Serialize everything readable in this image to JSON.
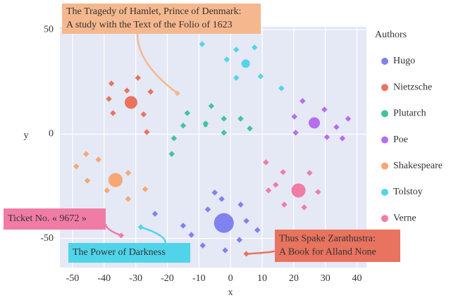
{
  "chart_data": {
    "type": "scatter",
    "xlabel": "x",
    "ylabel": "y",
    "xlim": [
      -54,
      43
    ],
    "ylim": [
      -64,
      51.5
    ],
    "xticks": [
      -50,
      -40,
      -30,
      -20,
      -10,
      0,
      10,
      20,
      30,
      40
    ],
    "yticks": [
      -50,
      0,
      50
    ],
    "grid": true,
    "legend": "right",
    "legend_title": "Authors",
    "series": [
      {
        "name": "Hugo",
        "color": "#7f82ef",
        "x": [
          -7.2,
          -12.4,
          -8.8,
          -1.7,
          2.8,
          5,
          3.2,
          -2.8,
          -23.9,
          -15,
          8.5,
          -5
        ],
        "y": [
          -36.1,
          -48.3,
          -53.4,
          -55.7,
          -50.7,
          -41.6,
          -33.8,
          -31.1,
          -38.2,
          -43.9,
          -46,
          -28
        ],
        "centroid": {
          "x": -2.1,
          "y": -42.6,
          "size": 14
        }
      },
      {
        "name": "Nietzsche",
        "color": "#e8735f",
        "x": [
          -37.7,
          -32.8,
          -29.3,
          -25.3,
          -27.5,
          -37.2,
          -38.5,
          -26.5
        ],
        "y": [
          24.3,
          20.9,
          27,
          20.3,
          9.5,
          10.1,
          16.9,
          1
        ],
        "centroid": {
          "x": -31.5,
          "y": 15.2,
          "size": 9
        }
      },
      {
        "name": "Plutarch",
        "color": "#3fc49d",
        "x": [
          -13.7,
          -15,
          -7.9,
          -17.9,
          -6.1,
          -2.1,
          3.2,
          6.1,
          -2.1,
          -18.6
        ],
        "y": [
          10.1,
          4.1,
          5.1,
          -2,
          13.5,
          7.4,
          7.4,
          2.7,
          0.7,
          -9.5
        ],
        "centroid": {
          "x": -7.9,
          "y": 4.4,
          "size": 3
        }
      },
      {
        "name": "Poe",
        "color": "#b56ef0",
        "x": [
          22.8,
          20.2,
          29.7,
          33.5,
          37.2,
          35.4,
          30.5,
          20.6
        ],
        "y": [
          15.9,
          8.4,
          11.8,
          3.4,
          7.4,
          -2,
          -1.4,
          0.7
        ],
        "centroid": {
          "x": 26.5,
          "y": 5.4,
          "size": 8
        }
      },
      {
        "name": "Shakespeare",
        "color": "#f5a874",
        "x": [
          -45.7,
          -48.8,
          -45.3,
          -41.8,
          -32.4,
          -27,
          -32.4,
          -39.1
        ],
        "y": [
          -9.5,
          -15.5,
          -22.3,
          -12.2,
          -18.6,
          -26.4,
          -31.1,
          -27
        ],
        "centroid": {
          "x": -36.4,
          "y": -22,
          "size": 10
        }
      },
      {
        "name": "Tolstoy",
        "color": "#50d4ea",
        "x": [
          -9,
          1.8,
          7.6,
          -1.2,
          9.5,
          16.1,
          1.8
        ],
        "y": [
          43.2,
          40.5,
          41.6,
          35.8,
          27.7,
          22,
          27
        ],
        "centroid": {
          "x": 4.8,
          "y": 33.8,
          "size": 6
        }
      },
      {
        "name": "Verne",
        "color": "#f07ca6",
        "x": [
          11.2,
          16.6,
          14.3,
          25,
          27.7,
          23.3,
          17,
          12
        ],
        "y": [
          -13.5,
          -18.2,
          -24.3,
          -18.6,
          -27.7,
          -35.1,
          -33.8,
          -27
        ],
        "centroid": {
          "x": 21.5,
          "y": -27,
          "size": 10
        }
      }
    ],
    "annotations": [
      {
        "text": [
          "The Tragedy of Hamlet, Prince of Denmark:",
          "A study with the Text of the Folio of 1623"
        ],
        "x": -16.8,
        "y": 19.6,
        "color": "#f5b88e"
      },
      {
        "text": [
          "Ticket No. « 9672 »"
        ],
        "x": -34.6,
        "y": -48.6,
        "color": "#f07ca6"
      },
      {
        "text": [
          "The Power of Darkness"
        ],
        "x": -28.4,
        "y": -44.6,
        "color": "#50d4ea"
      },
      {
        "text": [
          "Thus Spake Zarathustra:",
          "A Book for Alland None"
        ],
        "x": 5,
        "y": -57.4,
        "color": "#e8735f"
      }
    ]
  }
}
